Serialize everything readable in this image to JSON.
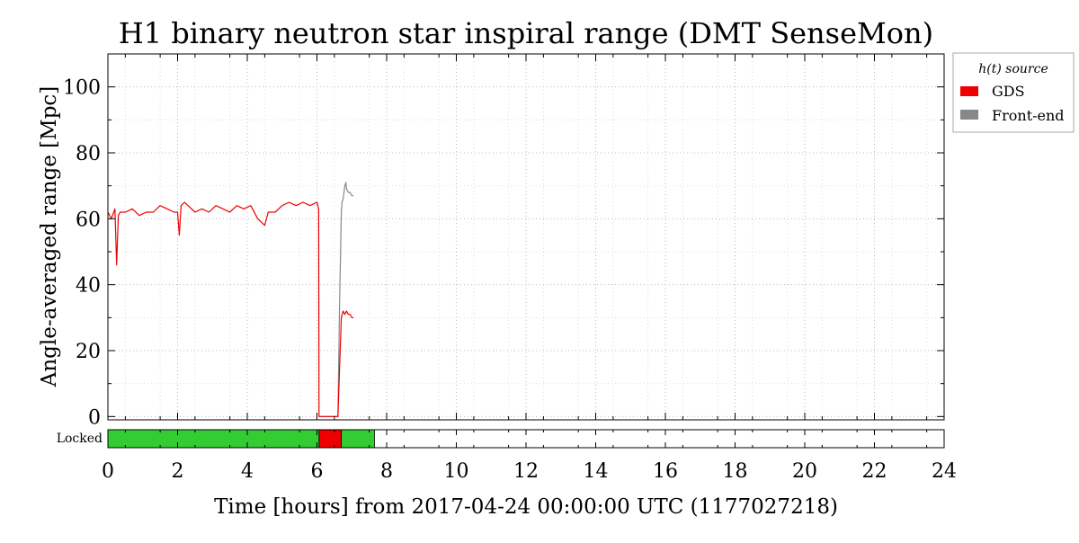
{
  "chart_data": {
    "type": "line",
    "title": "H1 binary neutron star inspiral range (DMT SenseMon)",
    "xlabel": "Time [hours] from 2017-04-24 00:00:00 UTC (1177027218)",
    "ylabel": "Angle-averaged range [Mpc]",
    "xlim": [
      0,
      24
    ],
    "ylim": [
      -1,
      110
    ],
    "x_ticks": [
      "0",
      "2",
      "4",
      "6",
      "8",
      "10",
      "12",
      "14",
      "16",
      "18",
      "20",
      "22",
      "24"
    ],
    "y_ticks": [
      "0",
      "20",
      "40",
      "60",
      "80",
      "100"
    ],
    "grid": true,
    "legend": {
      "title": "h(t) source",
      "placement": "outside-right-top",
      "entries": [
        {
          "label": "GDS",
          "color": "#ee0000"
        },
        {
          "label": "Front-end",
          "color": "#888888"
        }
      ]
    },
    "series": [
      {
        "name": "GDS",
        "color": "#ee0000",
        "x": [
          0.0,
          0.1,
          0.2,
          0.25,
          0.3,
          0.35,
          0.5,
          0.7,
          0.9,
          1.1,
          1.3,
          1.5,
          1.7,
          1.9,
          2.0,
          2.05,
          2.1,
          2.2,
          2.3,
          2.5,
          2.7,
          2.9,
          3.1,
          3.3,
          3.5,
          3.7,
          3.9,
          4.1,
          4.3,
          4.5,
          4.6,
          4.8,
          5.0,
          5.2,
          5.4,
          5.6,
          5.8,
          6.0,
          6.05,
          6.06,
          6.1,
          6.2,
          6.4,
          6.6,
          6.65,
          6.7,
          6.75,
          6.8,
          6.85,
          6.9,
          6.95,
          7.0,
          7.05
        ],
        "y": [
          62,
          60,
          63,
          46,
          61,
          62,
          62,
          63,
          61,
          62,
          62,
          64,
          63,
          62,
          62,
          55,
          64,
          65,
          64,
          62,
          63,
          62,
          64,
          63,
          62,
          64,
          63,
          64,
          60,
          58,
          62,
          62,
          64,
          65,
          64,
          65,
          64,
          65,
          63,
          0,
          0,
          0,
          0,
          0,
          15,
          30,
          32,
          31,
          32,
          31,
          31,
          30,
          30
        ]
      },
      {
        "name": "Front-end",
        "color": "#888888",
        "x": [
          6.06,
          6.1,
          6.3,
          6.5,
          6.6,
          6.65,
          6.7,
          6.72,
          6.75,
          6.8,
          6.83,
          6.85,
          6.9,
          6.95,
          7.0,
          7.05
        ],
        "y": [
          0,
          0,
          0,
          0,
          0,
          35,
          62,
          65,
          66,
          70,
          71,
          69,
          68,
          68,
          67,
          67
        ]
      }
    ],
    "segment_bar": {
      "label": "Locked",
      "segments": [
        {
          "start": 0.0,
          "end": 6.06,
          "color": "#33cc33"
        },
        {
          "start": 6.06,
          "end": 6.7,
          "color": "#ee0000"
        },
        {
          "start": 6.7,
          "end": 7.65,
          "color": "#33cc33"
        }
      ]
    }
  }
}
